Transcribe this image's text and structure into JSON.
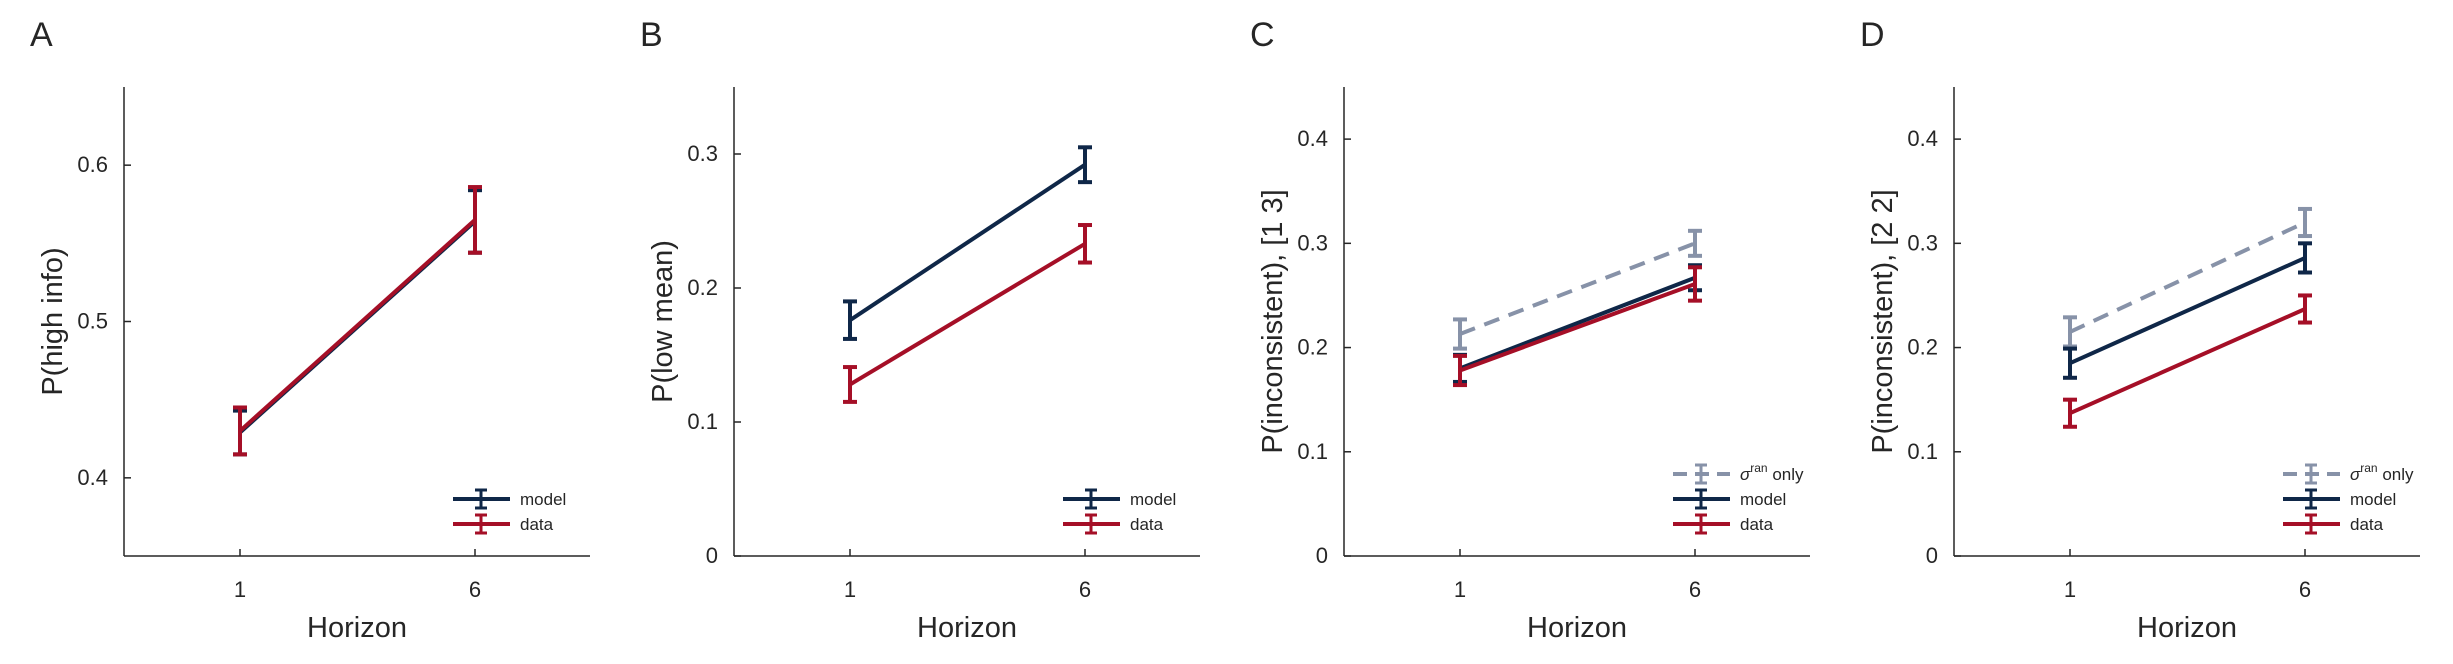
{
  "colors": {
    "model": "#0f2748",
    "data": "#a50f27",
    "sigma": "#8792a8",
    "axis": "#262626"
  },
  "chart_data": [
    {
      "panel": "A",
      "type": "line",
      "xlabel": "Horizon",
      "ylabel": "P(high info)",
      "categories": [
        "1",
        "6"
      ],
      "ylim": [
        0.35,
        0.65
      ],
      "yticks": [
        "0.4",
        "0.5",
        "0.6"
      ],
      "grid": false,
      "legend_position": "bottom-right",
      "series": [
        {
          "name": "model",
          "key": "model",
          "dash": false,
          "values": [
            0.429,
            0.564
          ],
          "errors": [
            0.014,
            0.02
          ]
        },
        {
          "name": "data",
          "key": "data",
          "dash": false,
          "values": [
            0.43,
            0.565
          ],
          "errors": [
            0.015,
            0.021
          ]
        }
      ]
    },
    {
      "panel": "B",
      "type": "line",
      "xlabel": "Horizon",
      "ylabel": "P(low mean)",
      "categories": [
        "1",
        "6"
      ],
      "ylim": [
        0,
        0.35
      ],
      "yticks": [
        "0",
        "0.1",
        "0.2",
        "0.3"
      ],
      "grid": false,
      "legend_position": "bottom-right",
      "series": [
        {
          "name": "model",
          "key": "model",
          "dash": false,
          "values": [
            0.176,
            0.292
          ],
          "errors": [
            0.014,
            0.013
          ]
        },
        {
          "name": "data",
          "key": "data",
          "dash": false,
          "values": [
            0.128,
            0.233
          ],
          "errors": [
            0.013,
            0.014
          ]
        }
      ]
    },
    {
      "panel": "C",
      "type": "line",
      "xlabel": "Horizon",
      "ylabel": "P(inconsistent), [1 3]",
      "categories": [
        "1",
        "6"
      ],
      "ylim": [
        0,
        0.45
      ],
      "yticks": [
        "0",
        "0.1",
        "0.2",
        "0.3",
        "0.4"
      ],
      "grid": false,
      "legend_position": "bottom-right",
      "series": [
        {
          "name": "σ",
          "sup": "ran",
          "suffix": " only",
          "key": "sigma",
          "dash": true,
          "values": [
            0.213,
            0.3
          ],
          "errors": [
            0.014,
            0.012
          ]
        },
        {
          "name": "model",
          "key": "model",
          "dash": false,
          "values": [
            0.18,
            0.267
          ],
          "errors": [
            0.013,
            0.012
          ]
        },
        {
          "name": "data",
          "key": "data",
          "dash": false,
          "values": [
            0.178,
            0.261
          ],
          "errors": [
            0.014,
            0.016
          ]
        }
      ]
    },
    {
      "panel": "D",
      "type": "line",
      "xlabel": "Horizon",
      "ylabel": "P(inconsistent), [2 2]",
      "categories": [
        "1",
        "6"
      ],
      "ylim": [
        0,
        0.45
      ],
      "yticks": [
        "0",
        "0.1",
        "0.2",
        "0.3",
        "0.4"
      ],
      "grid": false,
      "legend_position": "bottom-right",
      "series": [
        {
          "name": "σ",
          "sup": "ran",
          "suffix": " only",
          "key": "sigma",
          "dash": true,
          "values": [
            0.215,
            0.32
          ],
          "errors": [
            0.014,
            0.013
          ]
        },
        {
          "name": "model",
          "key": "model",
          "dash": false,
          "values": [
            0.185,
            0.286
          ],
          "errors": [
            0.014,
            0.014
          ]
        },
        {
          "name": "data",
          "key": "data",
          "dash": false,
          "values": [
            0.137,
            0.237
          ],
          "errors": [
            0.013,
            0.013
          ]
        }
      ]
    }
  ]
}
